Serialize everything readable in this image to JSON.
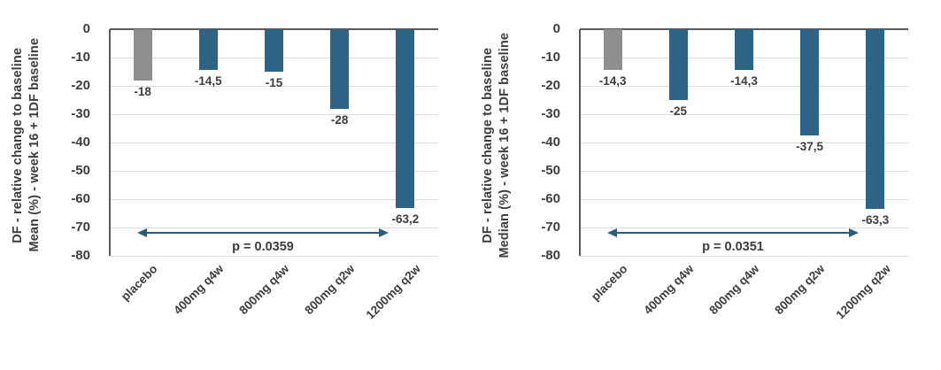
{
  "chart_data": [
    {
      "type": "bar",
      "panel": "left",
      "title": "",
      "ylabel_line1": "DF - relative change to baseline",
      "ylabel_line2": "Mean (%) - week 16 + 1DF baseline",
      "categories": [
        "placebo",
        "400mg q4w",
        "800mg q4w",
        "800mg q2w",
        "1200mg q2w"
      ],
      "values": [
        -18,
        -14.5,
        -15,
        -28,
        -63.2
      ],
      "value_labels": [
        "-18",
        "-14,5",
        "-15",
        "-28",
        "-63,2"
      ],
      "annotation": "p = 0.0359",
      "annotation_level": -72,
      "ylim": [
        0,
        -80
      ],
      "yticks": [
        0,
        -10,
        -20,
        -30,
        -40,
        -50,
        -60,
        -70,
        -80
      ],
      "grid": true,
      "legend": "none",
      "colors": {
        "bar": "#2d6384",
        "placebo_bar": "#8f8f8f",
        "arrow": "#2a5d7c",
        "grid": "#dcdcdc",
        "axis": "#595959",
        "text": "#3d3d3d"
      }
    },
    {
      "type": "bar",
      "panel": "right",
      "title": "",
      "ylabel_line1": "DF - relative change to baseline",
      "ylabel_line2": "Median (%) - week 16 + 1DF baseline",
      "categories": [
        "placebo",
        "400mg q4w",
        "800mg q4w",
        "800mg q2w",
        "1200mg q2w"
      ],
      "values": [
        -14.3,
        -25,
        -14.3,
        -37.5,
        -63.3
      ],
      "value_labels": [
        "-14,3",
        "-25",
        "-14,3",
        "-37,5",
        "-63,3"
      ],
      "annotation": "p = 0.0351",
      "annotation_level": -72,
      "ylim": [
        0,
        -80
      ],
      "yticks": [
        0,
        -10,
        -20,
        -30,
        -40,
        -50,
        -60,
        -70,
        -80
      ],
      "grid": true,
      "legend": "none",
      "colors": {
        "bar": "#2d6384",
        "placebo_bar": "#8f8f8f",
        "arrow": "#2a5d7c",
        "grid": "#dcdcdc",
        "axis": "#595959",
        "text": "#3d3d3d"
      }
    }
  ]
}
